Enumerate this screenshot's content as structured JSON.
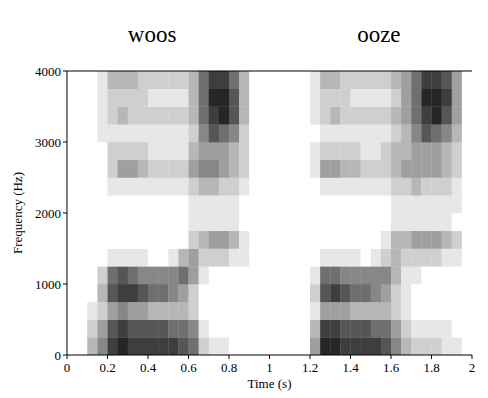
{
  "chart_data": {
    "type": "heatmap",
    "annotations": [
      "woos",
      "ooze"
    ],
    "x_label": "Time (s)",
    "y_label": "Frequency (Hz)",
    "xlim": [
      0,
      2
    ],
    "xticks": [
      0,
      0.2,
      0.4,
      0.6,
      0.8,
      1,
      1.2,
      1.4,
      1.6,
      1.8,
      2
    ],
    "ylim": [
      0,
      4000
    ],
    "yticks": [
      0,
      1000,
      2000,
      3000,
      4000
    ],
    "zlim": [
      0,
      9
    ],
    "color": "#000000",
    "x": [
      0,
      0.05,
      0.1,
      0.15,
      0.2,
      0.25,
      0.3,
      0.35,
      0.4,
      0.45,
      0.5,
      0.55,
      0.6,
      0.65,
      0.7,
      0.75,
      0.8,
      0.85,
      0.9,
      0.95,
      1,
      1.05,
      1.1,
      1.15,
      1.2,
      1.25,
      1.3,
      1.35,
      1.4,
      1.45,
      1.5,
      1.55,
      1.6,
      1.65,
      1.7,
      1.75,
      1.8,
      1.85,
      1.9,
      1.95
    ],
    "y": [
      0,
      250,
      500,
      750,
      1000,
      1250,
      1500,
      1750,
      2000,
      2250,
      2500,
      2750,
      3000,
      3250,
      3500,
      3750
    ],
    "z": [
      [
        0,
        0,
        0,
        0,
        0,
        0,
        0,
        0,
        0,
        0,
        0,
        0,
        0,
        0,
        0,
        0
      ],
      [
        0,
        0,
        0,
        0,
        0,
        0,
        0,
        0,
        0,
        0,
        0,
        0,
        0,
        0,
        0,
        0
      ],
      [
        3,
        2,
        1,
        0,
        0,
        0,
        0,
        0,
        0,
        0,
        0,
        0,
        0,
        0,
        0,
        0
      ],
      [
        5,
        4,
        2,
        3,
        2,
        0,
        0,
        0,
        0,
        0,
        0,
        0,
        1,
        1,
        1,
        1
      ],
      [
        8,
        7,
        4,
        7,
        6,
        1,
        0,
        0,
        0,
        1,
        2,
        2,
        1,
        2,
        2,
        3
      ],
      [
        9,
        8,
        5,
        8,
        7,
        1,
        0,
        0,
        0,
        1,
        4,
        2,
        1,
        3,
        2,
        3
      ],
      [
        8,
        7,
        4,
        8,
        6,
        1,
        0,
        0,
        0,
        1,
        4,
        2,
        1,
        2,
        2,
        3
      ],
      [
        8,
        7,
        4,
        7,
        5,
        1,
        0,
        0,
        0,
        1,
        3,
        2,
        1,
        2,
        2,
        2
      ],
      [
        8,
        7,
        3,
        6,
        5,
        0,
        0,
        0,
        0,
        1,
        2,
        1,
        1,
        2,
        1,
        2
      ],
      [
        8,
        7,
        3,
        6,
        5,
        0,
        0,
        0,
        0,
        1,
        2,
        1,
        1,
        2,
        1,
        2
      ],
      [
        8,
        6,
        3,
        5,
        5,
        1,
        0,
        0,
        0,
        1,
        2,
        1,
        1,
        2,
        1,
        2
      ],
      [
        7,
        6,
        3,
        4,
        6,
        3,
        0,
        0,
        0,
        1,
        2,
        1,
        1,
        2,
        1,
        2
      ],
      [
        6,
        5,
        2,
        2,
        4,
        4,
        2,
        1,
        1,
        2,
        4,
        3,
        2,
        3,
        3,
        3
      ],
      [
        2,
        1,
        0,
        0,
        1,
        2,
        3,
        1,
        1,
        3,
        5,
        4,
        5,
        6,
        6,
        6
      ],
      [
        1,
        0,
        0,
        0,
        0,
        2,
        4,
        1,
        1,
        3,
        5,
        4,
        7,
        8,
        9,
        8
      ],
      [
        1,
        0,
        0,
        0,
        0,
        2,
        4,
        1,
        1,
        2,
        4,
        4,
        6,
        9,
        9,
        8
      ],
      [
        0,
        0,
        0,
        0,
        0,
        1,
        3,
        1,
        1,
        2,
        3,
        3,
        5,
        7,
        7,
        6
      ],
      [
        0,
        0,
        0,
        0,
        0,
        1,
        1,
        0,
        0,
        1,
        2,
        2,
        2,
        3,
        3,
        3
      ],
      [
        0,
        0,
        0,
        0,
        0,
        0,
        0,
        0,
        0,
        0,
        0,
        0,
        0,
        0,
        0,
        0
      ],
      [
        0,
        0,
        0,
        0,
        0,
        0,
        0,
        0,
        0,
        0,
        0,
        0,
        0,
        0,
        0,
        0
      ],
      [
        0,
        0,
        0,
        0,
        0,
        0,
        0,
        0,
        0,
        0,
        0,
        0,
        0,
        0,
        0,
        0
      ],
      [
        0,
        0,
        0,
        0,
        0,
        0,
        0,
        0,
        0,
        0,
        0,
        0,
        0,
        0,
        0,
        0
      ],
      [
        0,
        0,
        0,
        0,
        0,
        0,
        0,
        0,
        0,
        0,
        0,
        0,
        0,
        0,
        0,
        0
      ],
      [
        0,
        0,
        0,
        0,
        0,
        0,
        0,
        0,
        0,
        0,
        0,
        0,
        0,
        0,
        0,
        0
      ],
      [
        4,
        3,
        1,
        2,
        1,
        0,
        0,
        0,
        0,
        0,
        1,
        1,
        0,
        1,
        1,
        1
      ],
      [
        9,
        8,
        4,
        7,
        6,
        1,
        0,
        0,
        0,
        1,
        4,
        2,
        1,
        2,
        2,
        3
      ],
      [
        9,
        8,
        4,
        8,
        6,
        1,
        0,
        0,
        0,
        1,
        4,
        2,
        1,
        3,
        2,
        3
      ],
      [
        8,
        7,
        4,
        7,
        5,
        1,
        0,
        0,
        0,
        1,
        3,
        2,
        1,
        2,
        2,
        2
      ],
      [
        8,
        7,
        3,
        6,
        5,
        1,
        0,
        0,
        0,
        1,
        3,
        2,
        1,
        2,
        1,
        2
      ],
      [
        8,
        7,
        3,
        6,
        5,
        0,
        0,
        0,
        0,
        1,
        2,
        1,
        1,
        2,
        1,
        2
      ],
      [
        8,
        6,
        3,
        5,
        5,
        1,
        0,
        0,
        0,
        1,
        2,
        1,
        1,
        2,
        1,
        2
      ],
      [
        7,
        6,
        3,
        4,
        5,
        2,
        1,
        0,
        0,
        1,
        2,
        2,
        1,
        2,
        1,
        2
      ],
      [
        5,
        4,
        2,
        2,
        3,
        3,
        3,
        1,
        1,
        2,
        3,
        3,
        2,
        3,
        2,
        3
      ],
      [
        3,
        2,
        1,
        1,
        1,
        2,
        3,
        1,
        1,
        2,
        4,
        3,
        3,
        4,
        4,
        4
      ],
      [
        2,
        1,
        0,
        0,
        1,
        2,
        4,
        1,
        1,
        3,
        4,
        4,
        5,
        6,
        6,
        6
      ],
      [
        2,
        1,
        0,
        0,
        0,
        2,
        4,
        1,
        1,
        2,
        4,
        4,
        7,
        8,
        9,
        8
      ],
      [
        2,
        1,
        0,
        0,
        0,
        2,
        4,
        1,
        1,
        2,
        4,
        4,
        6,
        9,
        9,
        8
      ],
      [
        1,
        1,
        0,
        0,
        0,
        1,
        3,
        1,
        1,
        2,
        3,
        3,
        5,
        7,
        8,
        7
      ],
      [
        1,
        0,
        0,
        0,
        0,
        1,
        2,
        0,
        1,
        1,
        2,
        2,
        3,
        4,
        4,
        4
      ],
      [
        0,
        0,
        0,
        0,
        0,
        0,
        0,
        0,
        0,
        0,
        0,
        0,
        0,
        0,
        0,
        0
      ]
    ]
  }
}
